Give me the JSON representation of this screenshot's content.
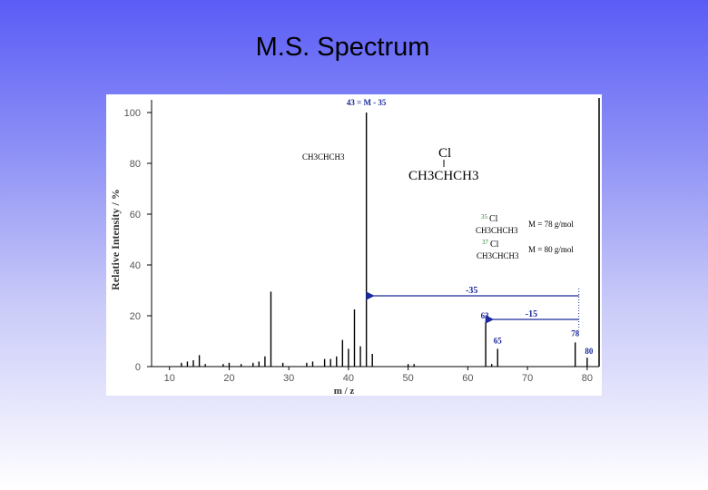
{
  "slide": {
    "title": "M.S. Spectrum"
  },
  "chart_data": {
    "type": "bar",
    "xlabel": "m / z",
    "ylabel": "Relative Intensity / %",
    "xlim": [
      7,
      82
    ],
    "ylim": [
      0,
      105
    ],
    "x_ticks": [
      "10",
      "20",
      "30",
      "40",
      "50",
      "60",
      "70",
      "80"
    ],
    "y_ticks": [
      "0",
      "20",
      "40",
      "60",
      "80",
      "100"
    ],
    "peaks": [
      {
        "x": 12,
        "y": 1.5
      },
      {
        "x": 13,
        "y": 2.0
      },
      {
        "x": 14,
        "y": 2.5
      },
      {
        "x": 15,
        "y": 4.5
      },
      {
        "x": 16,
        "y": 1.0
      },
      {
        "x": 19,
        "y": 1.0
      },
      {
        "x": 20,
        "y": 1.5
      },
      {
        "x": 22,
        "y": 1.0
      },
      {
        "x": 24,
        "y": 1.5
      },
      {
        "x": 25,
        "y": 2.0
      },
      {
        "x": 26,
        "y": 4.0
      },
      {
        "x": 27,
        "y": 29.5
      },
      {
        "x": 29,
        "y": 1.5
      },
      {
        "x": 33,
        "y": 1.5
      },
      {
        "x": 34,
        "y": 2.0
      },
      {
        "x": 36,
        "y": 3.0
      },
      {
        "x": 37,
        "y": 3.0
      },
      {
        "x": 38,
        "y": 4.0
      },
      {
        "x": 39,
        "y": 10.5
      },
      {
        "x": 40,
        "y": 7.0
      },
      {
        "x": 41,
        "y": 22.5
      },
      {
        "x": 42,
        "y": 8.0
      },
      {
        "x": 43,
        "y": 100
      },
      {
        "x": 44,
        "y": 5.0
      },
      {
        "x": 50,
        "y": 1.0
      },
      {
        "x": 51,
        "y": 1.0
      },
      {
        "x": 63,
        "y": 17.5
      },
      {
        "x": 64,
        "y": 1.0
      },
      {
        "x": 65,
        "y": 7.0
      },
      {
        "x": 78,
        "y": 9.5
      },
      {
        "x": 80,
        "y": 3.5
      }
    ],
    "peak_labels": [
      {
        "x": 43,
        "text": "43 = M - 35"
      },
      {
        "x": 63,
        "text": "63"
      },
      {
        "x": 65,
        "text": "65"
      },
      {
        "x": 78,
        "text": "78"
      },
      {
        "x": 80,
        "text": "80"
      }
    ],
    "loss_arrows": [
      {
        "from": 78,
        "to": 43,
        "label": "-35"
      },
      {
        "from": 78,
        "to": 63,
        "label": "-15"
      }
    ],
    "annotations": {
      "fragment": "CH3CHCH3",
      "molecule_sub": "Cl",
      "molecule_main": "CH3CHCH3",
      "isotope1": {
        "atom": "Cl",
        "mass": "35",
        "formula": "CH3CHCH3",
        "mass_text": "M = 78 g/mol"
      },
      "isotope2": {
        "atom": "Cl",
        "mass": "37",
        "formula": "CH3CHCH3",
        "mass_text": "M = 80 g/mol"
      }
    },
    "colors": {
      "arrow": "#1a2a9c",
      "peak": "#000000",
      "label": "#1a2a9c"
    }
  }
}
